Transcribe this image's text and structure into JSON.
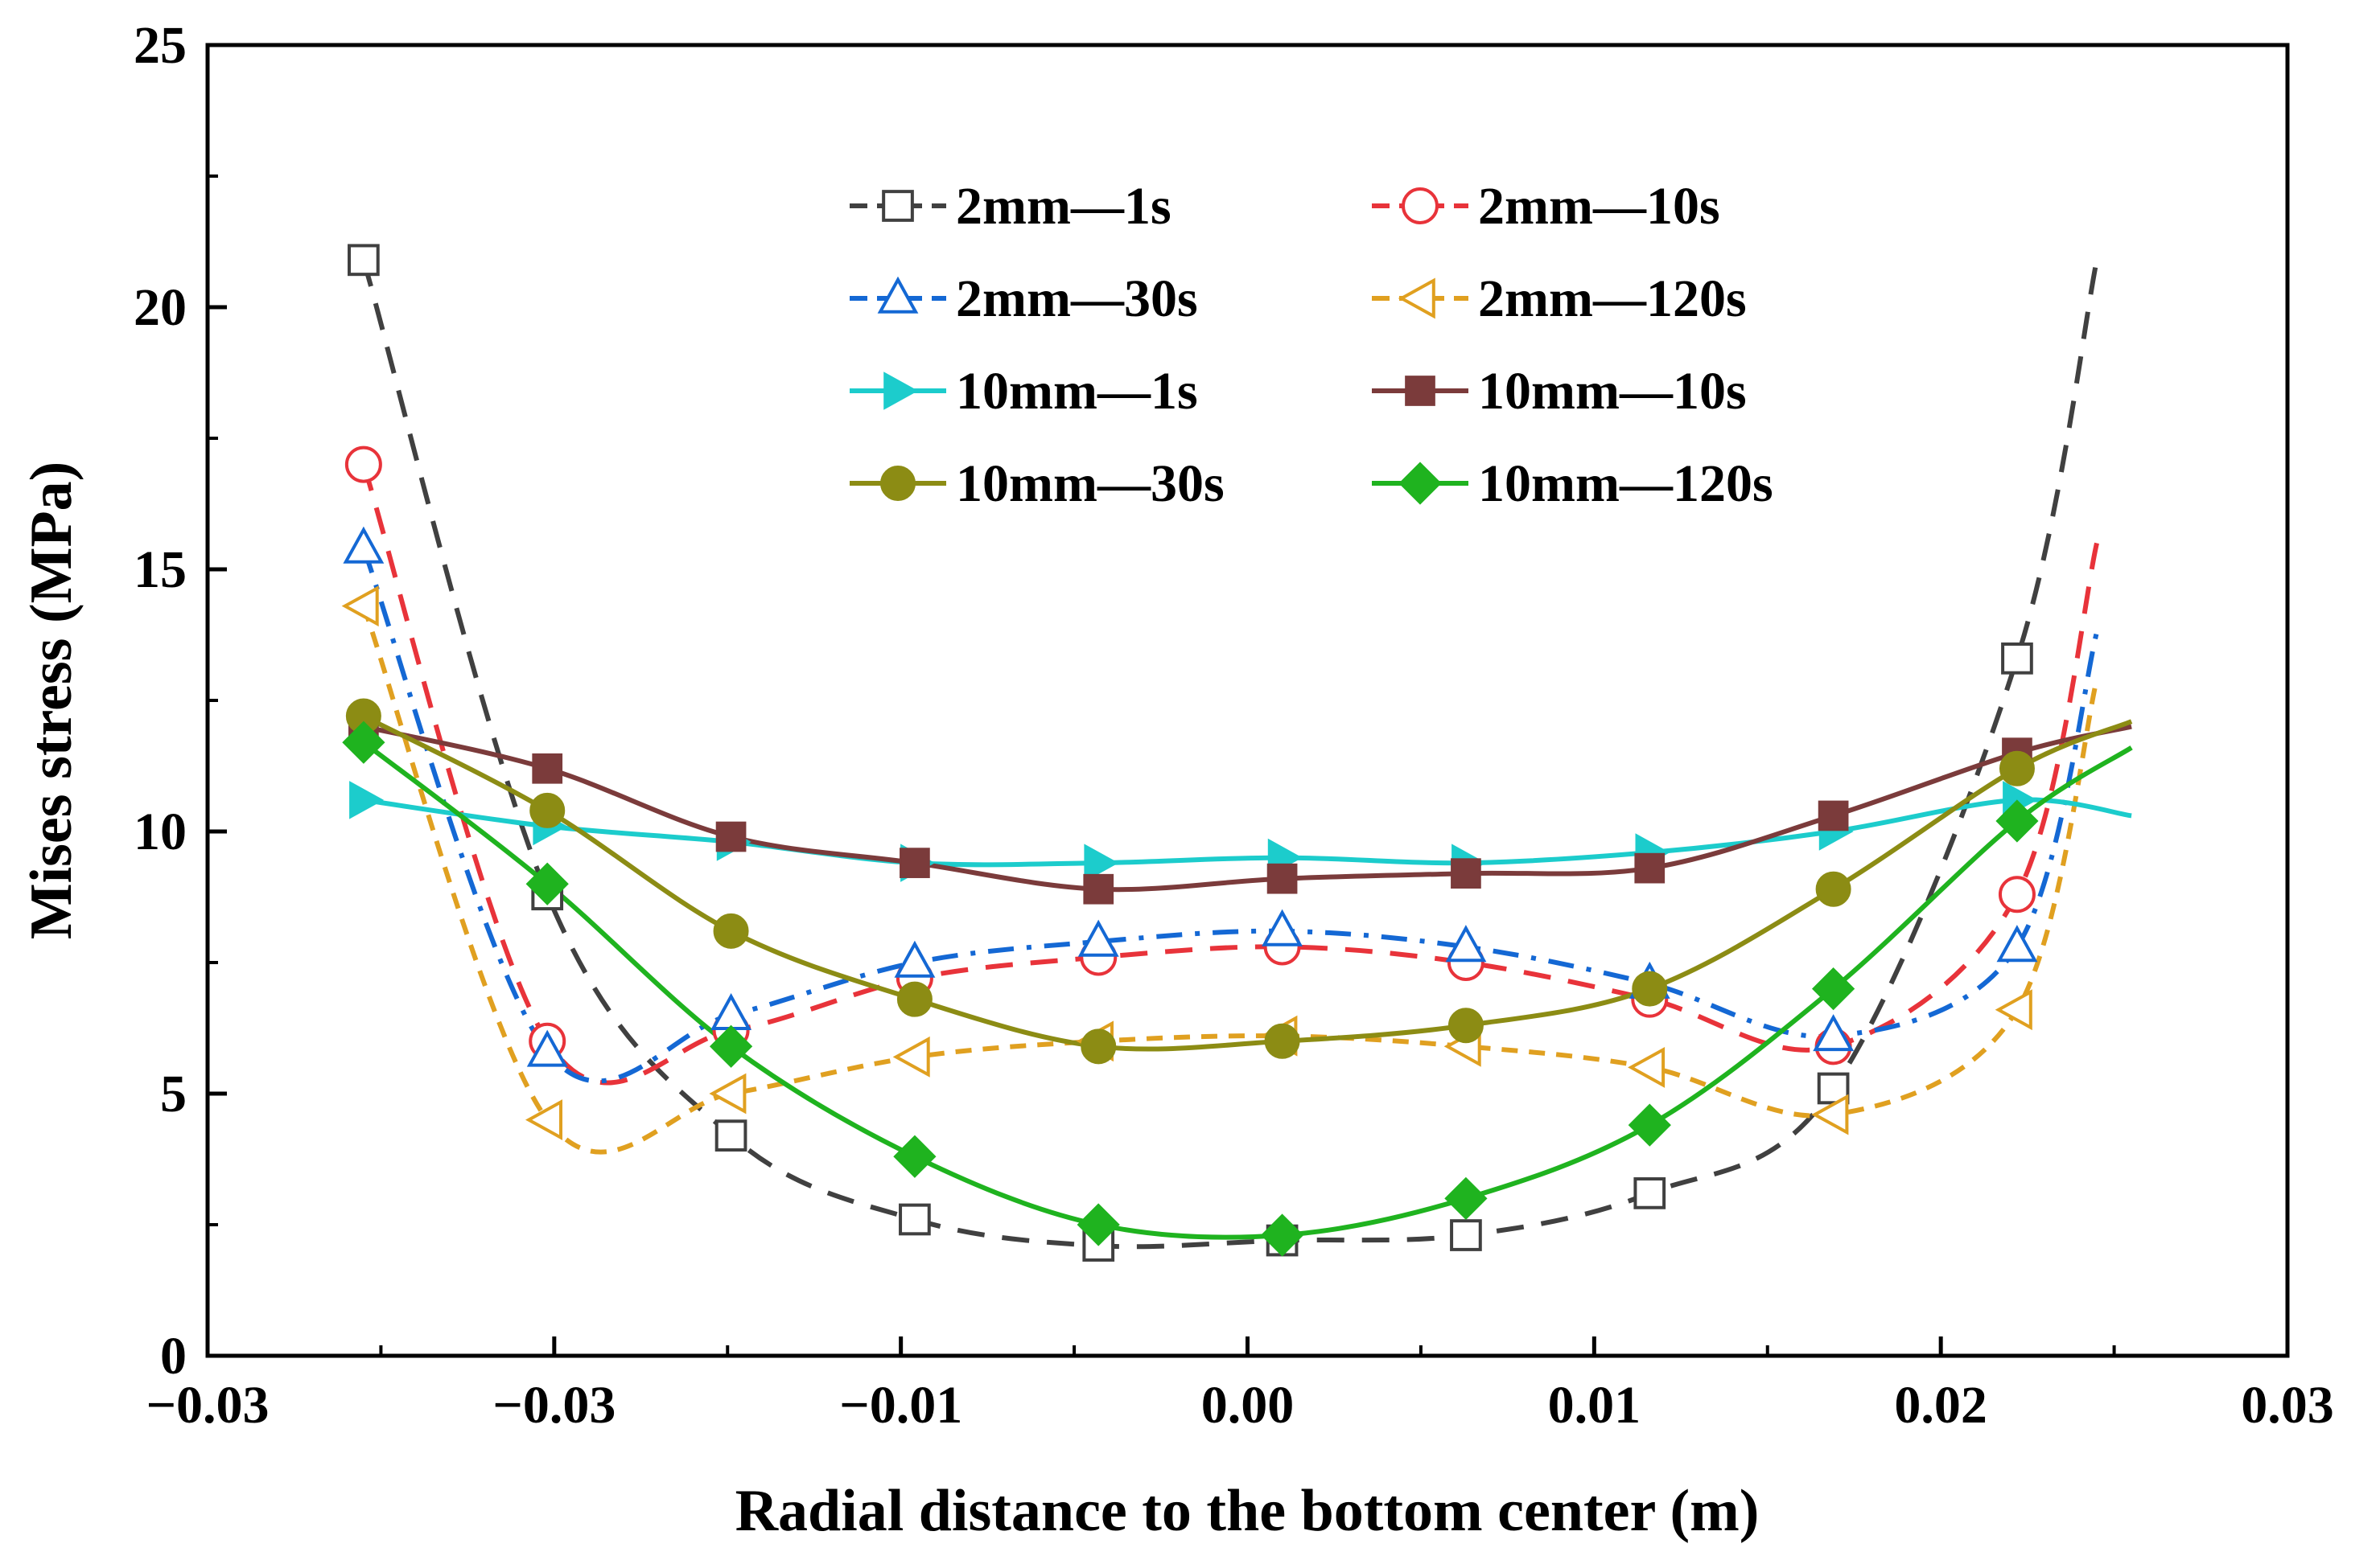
{
  "chart_data": {
    "type": "line",
    "title": "",
    "xlabel": "Radial distance to the  bottom center (m)",
    "ylabel": "Mises stress (MPa)",
    "xlim": [
      -0.03,
      0.03
    ],
    "ylim": [
      0,
      25
    ],
    "x_tick_labels": [
      "−0.03",
      "−0.03",
      "−0.01",
      "0.00",
      "0.01",
      "0.02",
      "0.03"
    ],
    "y_tick_labels": [
      "0",
      "5",
      "10",
      "15",
      "20",
      "25"
    ],
    "legend_position": "top-center",
    "x": [
      -0.0255,
      -0.0202,
      -0.0149,
      -0.0096,
      -0.0043,
      0.001,
      0.0063,
      0.0116,
      0.0169,
      0.0222
    ],
    "series": [
      {
        "name": "2mm—1s",
        "color": "#404040",
        "marker": "square-open",
        "dash": "dash",
        "values": [
          20.9,
          8.8,
          4.2,
          2.6,
          2.1,
          2.2,
          2.3,
          3.1,
          5.1,
          13.3
        ],
        "end": [
          0.0245,
          20.9
        ]
      },
      {
        "name": "2mm—10s",
        "color": "#e8333a",
        "marker": "circle-open",
        "dash": "dash",
        "values": [
          17.0,
          6.0,
          6.2,
          7.2,
          7.6,
          7.8,
          7.5,
          6.8,
          5.9,
          8.8
        ],
        "end": [
          0.0245,
          15.5
        ]
      },
      {
        "name": "2mm—30s",
        "color": "#1468d4",
        "marker": "triangle-up-open",
        "dash": "dashdot",
        "values": [
          15.4,
          5.8,
          6.5,
          7.5,
          7.9,
          8.1,
          7.8,
          7.1,
          6.1,
          7.8
        ],
        "end": [
          0.0245,
          13.8
        ]
      },
      {
        "name": "2mm—120s",
        "color": "#e0a020",
        "marker": "triangle-left-open",
        "dash": "shortdash",
        "values": [
          14.3,
          4.5,
          5.0,
          5.7,
          6.0,
          6.1,
          5.9,
          5.5,
          4.6,
          6.6
        ],
        "end": [
          0.0245,
          12.9
        ]
      },
      {
        "name": "10mm—1s",
        "color": "#1ccccc",
        "marker": "triangle-right-filled",
        "dash": "solid",
        "values": [
          10.6,
          10.1,
          9.8,
          9.4,
          9.4,
          9.5,
          9.4,
          9.6,
          10.0,
          10.6
        ],
        "end": [
          0.0255,
          10.3
        ]
      },
      {
        "name": "10mm—10s",
        "color": "#7b3b3b",
        "marker": "square-filled",
        "dash": "solid",
        "values": [
          12.0,
          11.2,
          9.9,
          9.4,
          8.9,
          9.1,
          9.2,
          9.3,
          10.3,
          11.5
        ],
        "end": [
          0.0255,
          12.0
        ]
      },
      {
        "name": "10mm—30s",
        "color": "#8c8c14",
        "marker": "circle-filled",
        "dash": "solid",
        "values": [
          12.2,
          10.4,
          8.1,
          6.8,
          5.9,
          6.0,
          6.3,
          7.0,
          8.9,
          11.2
        ],
        "end": [
          0.0255,
          12.1
        ]
      },
      {
        "name": "10mm—120s",
        "color": "#1fb31f",
        "marker": "diamond-filled",
        "dash": "solid",
        "values": [
          11.7,
          9.0,
          5.9,
          3.8,
          2.5,
          2.3,
          3.0,
          4.4,
          7.0,
          10.2
        ],
        "end": [
          0.0255,
          11.6
        ]
      }
    ]
  }
}
